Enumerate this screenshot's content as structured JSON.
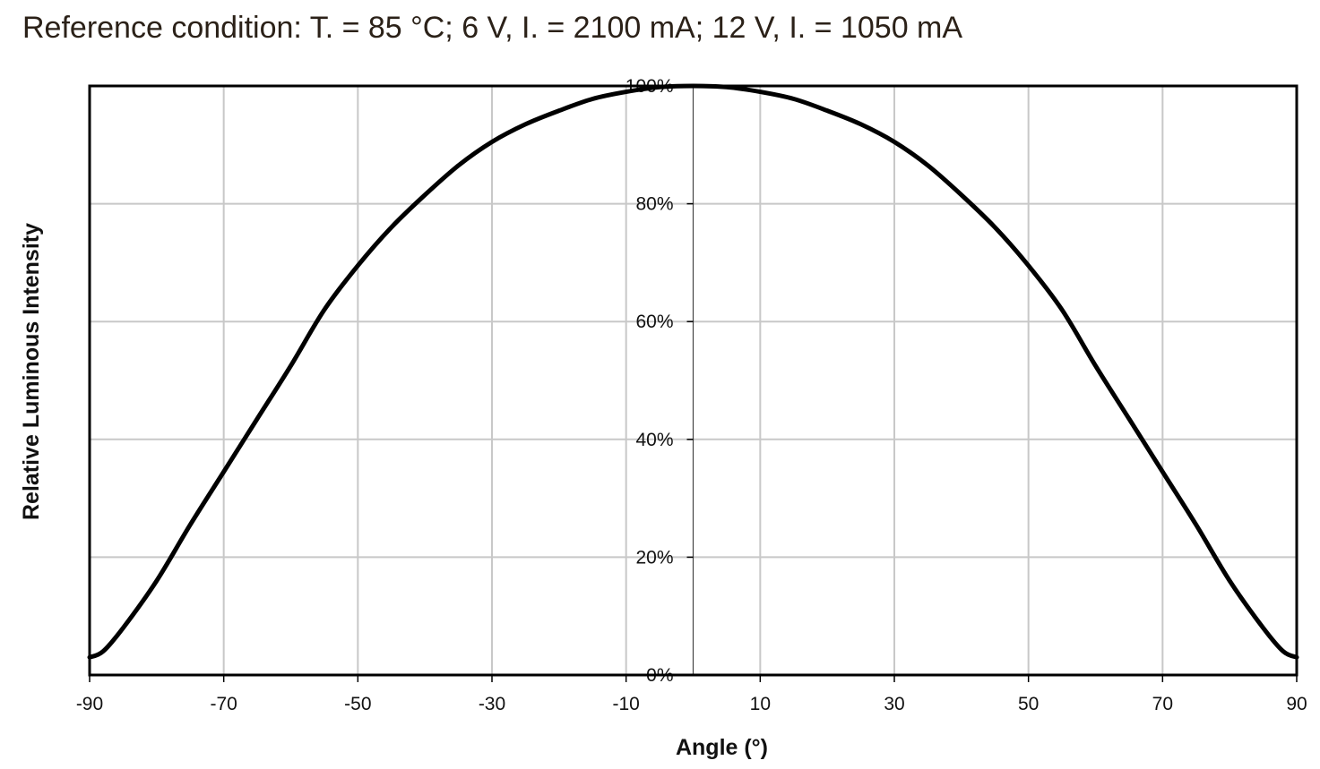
{
  "chart_data": {
    "type": "line",
    "title": "Reference condition: T. = 85 °C; 6 V, I. = 2100 mA; 12 V, I. = 1050 mA",
    "xlabel": "Angle (°)",
    "ylabel": "Relative Luminous Intensity",
    "xlim": [
      -90,
      90
    ],
    "ylim": [
      0,
      100
    ],
    "x_ticks": [
      -90,
      -70,
      -50,
      -30,
      -10,
      10,
      30,
      50,
      70,
      90
    ],
    "x_tick_labels": [
      "-90",
      "-70",
      "-50",
      "-30",
      "-10",
      "10",
      "30",
      "50",
      "70",
      "90"
    ],
    "y_ticks": [
      0,
      20,
      40,
      60,
      80,
      100
    ],
    "y_tick_labels": [
      "0%",
      "20%",
      "40%",
      "60%",
      "80%",
      "100%"
    ],
    "grid": true,
    "colors": {
      "line": "#000000",
      "grid": "#c8c8c8",
      "frame": "#000000",
      "title": "#2b2118"
    },
    "series": [
      {
        "x": [
          -90,
          -88,
          -85,
          -80,
          -75,
          -70,
          -65,
          -60,
          -55,
          -50,
          -45,
          -40,
          -35,
          -30,
          -25,
          -20,
          -15,
          -10,
          -5,
          0,
          5,
          10,
          15,
          20,
          25,
          30,
          35,
          40,
          45,
          50,
          55,
          60,
          65,
          70,
          75,
          80,
          85,
          88,
          90
        ],
        "y": [
          3,
          4,
          8,
          16,
          25.5,
          34.5,
          43.5,
          52.5,
          62,
          69.5,
          76,
          81.5,
          86.5,
          90.5,
          93.5,
          95.8,
          97.8,
          99,
          99.8,
          100,
          99.8,
          99,
          97.8,
          95.8,
          93.5,
          90.5,
          86.5,
          81.5,
          76,
          69.5,
          62,
          52.5,
          43.5,
          34.5,
          25.5,
          16,
          8,
          4,
          3
        ]
      }
    ]
  }
}
